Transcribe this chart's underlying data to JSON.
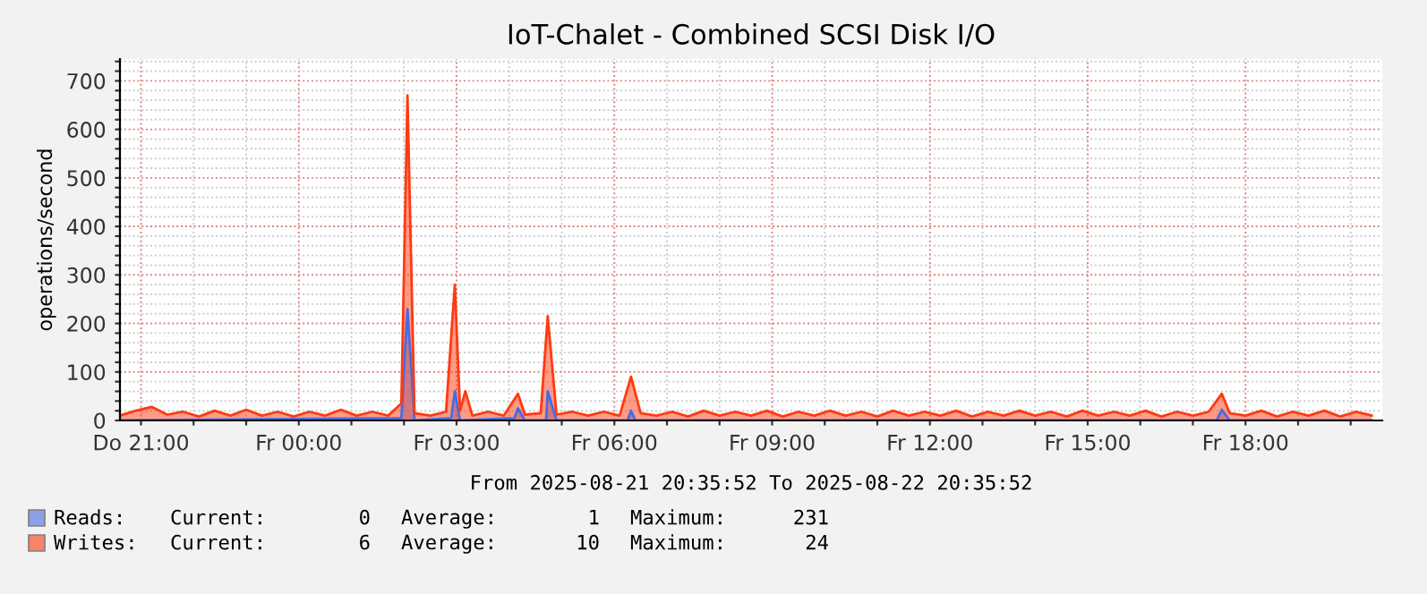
{
  "chart_data": {
    "type": "area",
    "title": "IoT-Chalet - Combined SCSI Disk I/O",
    "xlabel": "From 2025-08-21 20:35:52 To 2025-08-22 20:35:52",
    "ylabel": "operations/second",
    "xlim": [
      "2025-08-21T20:36",
      "2025-08-22T20:36"
    ],
    "xticks": [
      {
        "value": "2025-08-21T21:00",
        "label": "Do 21:00"
      },
      {
        "value": "2025-08-21T22:00",
        "label": null
      },
      {
        "value": "2025-08-21T23:00",
        "label": null
      },
      {
        "value": "2025-08-22T00:00",
        "label": "Fr 00:00"
      },
      {
        "value": "2025-08-22T01:00",
        "label": null
      },
      {
        "value": "2025-08-22T02:00",
        "label": null
      },
      {
        "value": "2025-08-22T03:00",
        "label": "Fr 03:00"
      },
      {
        "value": "2025-08-22T04:00",
        "label": null
      },
      {
        "value": "2025-08-22T05:00",
        "label": null
      },
      {
        "value": "2025-08-22T06:00",
        "label": "Fr 06:00"
      },
      {
        "value": "2025-08-22T07:00",
        "label": null
      },
      {
        "value": "2025-08-22T08:00",
        "label": null
      },
      {
        "value": "2025-08-22T09:00",
        "label": "Fr 09:00"
      },
      {
        "value": "2025-08-22T10:00",
        "label": null
      },
      {
        "value": "2025-08-22T11:00",
        "label": null
      },
      {
        "value": "2025-08-22T12:00",
        "label": "Fr 12:00"
      },
      {
        "value": "2025-08-22T13:00",
        "label": null
      },
      {
        "value": "2025-08-22T14:00",
        "label": null
      },
      {
        "value": "2025-08-22T15:00",
        "label": "Fr 15:00"
      },
      {
        "value": "2025-08-22T16:00",
        "label": null
      },
      {
        "value": "2025-08-22T17:00",
        "label": null
      },
      {
        "value": "2025-08-22T18:00",
        "label": "Fr 18:00"
      },
      {
        "value": "2025-08-22T19:00",
        "label": null
      },
      {
        "value": "2025-08-22T20:00",
        "label": null
      }
    ],
    "ylim": [
      0,
      745
    ],
    "yticks": [
      0,
      {
        "value": 20,
        "label": null
      },
      {
        "value": 40,
        "label": null
      },
      {
        "value": 60,
        "label": null
      },
      {
        "value": 80,
        "label": null
      },
      100,
      {
        "value": 120,
        "label": null
      },
      {
        "value": 140,
        "label": null
      },
      {
        "value": 160,
        "label": null
      },
      {
        "value": 180,
        "label": null
      },
      200,
      {
        "value": 220,
        "label": null
      },
      {
        "value": 240,
        "label": null
      },
      {
        "value": 260,
        "label": null
      },
      {
        "value": 280,
        "label": null
      },
      300,
      {
        "value": 320,
        "label": null
      },
      {
        "value": 340,
        "label": null
      },
      {
        "value": 360,
        "label": null
      },
      {
        "value": 380,
        "label": null
      },
      400,
      {
        "value": 420,
        "label": null
      },
      {
        "value": 440,
        "label": null
      },
      {
        "value": 460,
        "label": null
      },
      {
        "value": 480,
        "label": null
      },
      500,
      {
        "value": 520,
        "label": null
      },
      {
        "value": 540,
        "label": null
      },
      {
        "value": 560,
        "label": null
      },
      {
        "value": 580,
        "label": null
      },
      600,
      {
        "value": 620,
        "label": null
      },
      {
        "value": 640,
        "label": null
      },
      {
        "value": 660,
        "label": null
      },
      {
        "value": 680,
        "label": null
      },
      700,
      {
        "value": 720,
        "label": null
      },
      {
        "value": 740,
        "label": null
      }
    ],
    "grid": true,
    "legend": "bottom",
    "series": [
      {
        "name": "Reads:",
        "color": "#4a6ae0",
        "x": [
          "2025-08-21T20:36",
          "2025-08-22T01:57",
          "2025-08-22T02:04",
          "2025-08-22T02:12",
          "2025-08-22T02:54",
          "2025-08-22T02:58",
          "2025-08-22T03:04",
          "2025-08-22T04:06",
          "2025-08-22T04:10",
          "2025-08-22T04:18",
          "2025-08-22T04:42",
          "2025-08-22T04:44",
          "2025-08-22T04:54",
          "2025-08-22T06:15",
          "2025-08-22T06:19",
          "2025-08-22T06:24",
          "2025-08-22T17:27",
          "2025-08-22T17:33",
          "2025-08-22T17:42",
          "2025-08-22T20:24"
        ],
        "values": [
          0,
          5,
          230,
          0,
          5,
          60,
          0,
          5,
          25,
          0,
          0,
          60,
          0,
          0,
          20,
          0,
          0,
          22,
          0,
          0
        ]
      },
      {
        "name": "Writes:",
        "color": "#ff3a10",
        "x": [
          "2025-08-21T20:36",
          "2025-08-21T20:54",
          "2025-08-21T21:12",
          "2025-08-21T21:30",
          "2025-08-21T21:48",
          "2025-08-21T22:06",
          "2025-08-21T22:24",
          "2025-08-21T22:42",
          "2025-08-21T23:00",
          "2025-08-21T23:18",
          "2025-08-21T23:36",
          "2025-08-21T23:54",
          "2025-08-22T00:12",
          "2025-08-22T00:30",
          "2025-08-22T00:48",
          "2025-08-22T01:06",
          "2025-08-22T01:24",
          "2025-08-22T01:42",
          "2025-08-22T01:57",
          "2025-08-22T02:04",
          "2025-08-22T02:12",
          "2025-08-22T02:30",
          "2025-08-22T02:48",
          "2025-08-22T02:58",
          "2025-08-22T03:04",
          "2025-08-22T03:10",
          "2025-08-22T03:18",
          "2025-08-22T03:36",
          "2025-08-22T03:54",
          "2025-08-22T04:10",
          "2025-08-22T04:18",
          "2025-08-22T04:36",
          "2025-08-22T04:44",
          "2025-08-22T04:54",
          "2025-08-22T05:12",
          "2025-08-22T05:30",
          "2025-08-22T05:48",
          "2025-08-22T06:06",
          "2025-08-22T06:19",
          "2025-08-22T06:30",
          "2025-08-22T06:48",
          "2025-08-22T07:06",
          "2025-08-22T07:24",
          "2025-08-22T07:42",
          "2025-08-22T08:00",
          "2025-08-22T08:18",
          "2025-08-22T08:36",
          "2025-08-22T08:54",
          "2025-08-22T09:12",
          "2025-08-22T09:30",
          "2025-08-22T09:48",
          "2025-08-22T10:06",
          "2025-08-22T10:24",
          "2025-08-22T10:42",
          "2025-08-22T11:00",
          "2025-08-22T11:18",
          "2025-08-22T11:36",
          "2025-08-22T11:54",
          "2025-08-22T12:12",
          "2025-08-22T12:30",
          "2025-08-22T12:48",
          "2025-08-22T13:06",
          "2025-08-22T13:24",
          "2025-08-22T13:42",
          "2025-08-22T14:00",
          "2025-08-22T14:18",
          "2025-08-22T14:36",
          "2025-08-22T14:54",
          "2025-08-22T15:12",
          "2025-08-22T15:30",
          "2025-08-22T15:48",
          "2025-08-22T16:06",
          "2025-08-22T16:24",
          "2025-08-22T16:42",
          "2025-08-22T17:00",
          "2025-08-22T17:18",
          "2025-08-22T17:33",
          "2025-08-22T17:42",
          "2025-08-22T18:00",
          "2025-08-22T18:18",
          "2025-08-22T18:36",
          "2025-08-22T18:54",
          "2025-08-22T19:12",
          "2025-08-22T19:30",
          "2025-08-22T19:48",
          "2025-08-22T20:06",
          "2025-08-22T20:24"
        ],
        "values": [
          10,
          20,
          28,
          12,
          18,
          8,
          20,
          10,
          22,
          10,
          18,
          8,
          18,
          10,
          22,
          10,
          18,
          10,
          35,
          670,
          15,
          10,
          18,
          280,
          20,
          60,
          10,
          18,
          10,
          55,
          12,
          15,
          215,
          12,
          18,
          10,
          18,
          10,
          90,
          15,
          10,
          18,
          8,
          20,
          10,
          18,
          10,
          20,
          8,
          18,
          10,
          20,
          10,
          18,
          8,
          20,
          10,
          18,
          10,
          20,
          8,
          18,
          10,
          20,
          10,
          18,
          8,
          20,
          10,
          18,
          10,
          20,
          8,
          18,
          10,
          18,
          55,
          15,
          10,
          20,
          8,
          18,
          10,
          20,
          8,
          18,
          10
        ]
      }
    ],
    "annotations": [
      "Current:",
      "0",
      "Average:",
      "1",
      "Maximum:",
      "231",
      "Current:",
      "6",
      "Average:",
      "10",
      "Maximum:",
      "24"
    ]
  }
}
